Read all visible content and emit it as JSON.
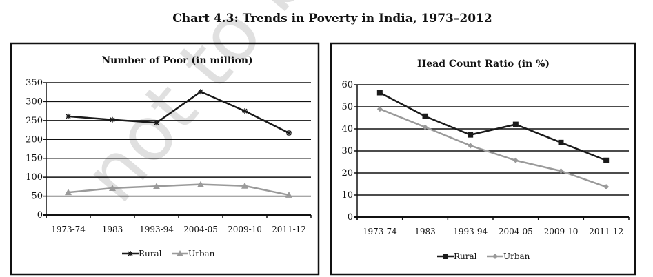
{
  "page_title": "Chart 4.3: Trends in Poverty in India, 1973–2012",
  "watermark": "not to be ©",
  "colors": {
    "rural": "#1a1a1a",
    "urban": "#9a9a9a",
    "grid": "#111111"
  },
  "chart_data": [
    {
      "type": "line",
      "title": "Number of Poor (in million)",
      "categories": [
        "1973-74",
        "1983",
        "1993-94",
        "2004-05",
        "2009-10",
        "2011-12"
      ],
      "ylim": [
        0,
        350
      ],
      "yticks": [
        0,
        50,
        100,
        150,
        200,
        250,
        300,
        350
      ],
      "grid": true,
      "legend": "bottom",
      "series": [
        {
          "name": "Rural",
          "marker": "asterisk",
          "values": [
            261,
            252,
            244,
            326,
            275,
            217
          ]
        },
        {
          "name": "Urban",
          "marker": "triangle",
          "values": [
            60,
            71,
            76,
            81,
            77,
            53
          ]
        }
      ]
    },
    {
      "type": "line",
      "title": "Head Count Ratio (in %)",
      "categories": [
        "1973-74",
        "1983",
        "1993-94",
        "2004-05",
        "2009-10",
        "2011-12"
      ],
      "ylim": [
        0,
        60
      ],
      "yticks": [
        0,
        10,
        20,
        30,
        40,
        50,
        60
      ],
      "grid": true,
      "legend": "bottom",
      "series": [
        {
          "name": "Rural",
          "marker": "square",
          "values": [
            56.4,
            45.7,
            37.3,
            42.0,
            33.8,
            25.7
          ]
        },
        {
          "name": "Urban",
          "marker": "diamond",
          "values": [
            49.0,
            40.8,
            32.4,
            25.7,
            20.9,
            13.7
          ]
        }
      ]
    }
  ]
}
